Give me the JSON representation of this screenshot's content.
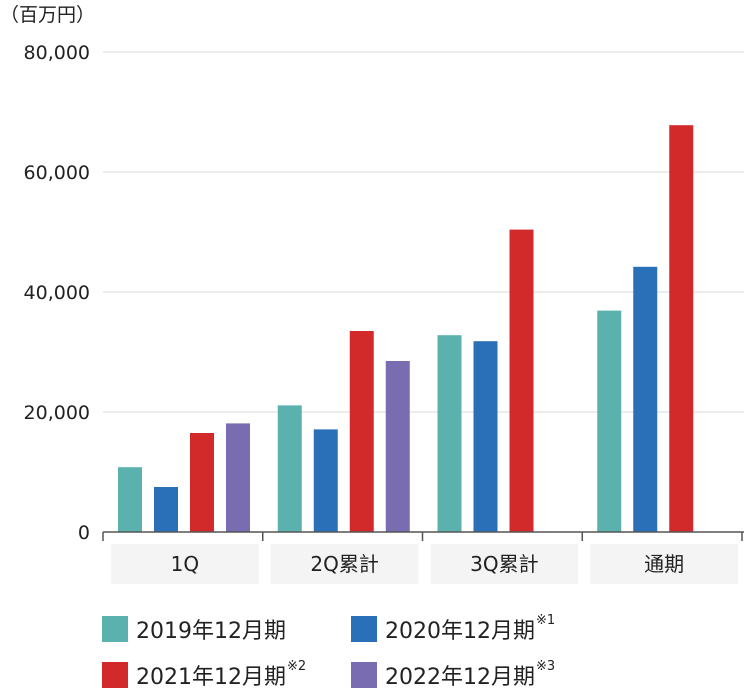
{
  "unit_label": "（百万円）",
  "chart_data": {
    "type": "bar",
    "categories": [
      "1Q",
      "2Q累計",
      "3Q累計",
      "通期"
    ],
    "series": [
      {
        "name": "2019年12月期",
        "note": "",
        "color": "#5bb1ad",
        "values": [
          10800,
          21100,
          32800,
          36900
        ]
      },
      {
        "name": "2020年12月期",
        "note": "※1",
        "color": "#2a70b8",
        "values": [
          7500,
          17100,
          31800,
          44200
        ]
      },
      {
        "name": "2021年12月期",
        "note": "※2",
        "color": "#d22a2a",
        "values": [
          16500,
          33500,
          50400,
          67800
        ]
      },
      {
        "name": "2022年12月期",
        "note": "※3",
        "color": "#7a6cb1",
        "values": [
          18100,
          28500,
          null,
          null
        ]
      }
    ],
    "ylim": [
      0,
      80000
    ],
    "yticks": [
      0,
      20000,
      40000,
      60000,
      80000
    ],
    "ytick_labels": [
      "0",
      "20,000",
      "40,000",
      "60,000",
      "80,000"
    ],
    "grid": true,
    "legend_position": "bottom"
  }
}
